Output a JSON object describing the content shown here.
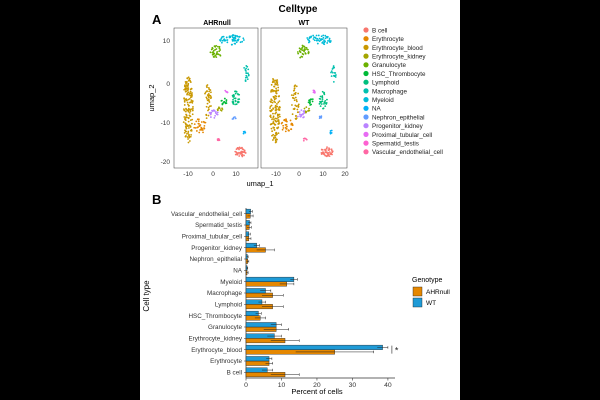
{
  "figure_title": "Celltype",
  "panel_a": {
    "label": "A",
    "facets": [
      "AHRnull",
      "WT"
    ],
    "xlabel": "umap_1",
    "ylabel": "umap_2",
    "xticks": [
      -10,
      0,
      10,
      20
    ],
    "yticks": [
      -20,
      -10,
      0,
      10
    ],
    "legend": [
      {
        "label": "B cell",
        "color": "#F8766D"
      },
      {
        "label": "Erythrocyte",
        "color": "#E58700"
      },
      {
        "label": "Erythrocyte_blood",
        "color": "#C99800"
      },
      {
        "label": "Erythrocyte_kidney",
        "color": "#A3A500"
      },
      {
        "label": "Granulocyte",
        "color": "#6BB100"
      },
      {
        "label": "HSC_Thrombocyte",
        "color": "#00BA38"
      },
      {
        "label": "Lymphoid",
        "color": "#00BF7D"
      },
      {
        "label": "Macrophage",
        "color": "#00C0AF"
      },
      {
        "label": "Myeloid",
        "color": "#00BCD8"
      },
      {
        "label": "NA",
        "color": "#00B0F6"
      },
      {
        "label": "Nephron_epithelial",
        "color": "#619CFF"
      },
      {
        "label": "Progenitor_kidney",
        "color": "#B983FF"
      },
      {
        "label": "Proximal_tubular_cell",
        "color": "#E76BF3"
      },
      {
        "label": "Spermatid_testis",
        "color": "#FD61D1"
      },
      {
        "label": "Vascular_endothelial_cell",
        "color": "#FF67A4"
      }
    ]
  },
  "chart_data": {
    "type": "bar",
    "panel_label": "B",
    "orientation": "horizontal",
    "categories": [
      "B cell",
      "Erythrocyte",
      "Erythrocyte_blood",
      "Erythrocyte_kidney",
      "Granulocyte",
      "HSC_Thrombocyte",
      "Lymphoid",
      "Macrophage",
      "Myeloid",
      "NA",
      "Nephron_epithelial",
      "Progenitor_kidney",
      "Proximal_tubular_cell",
      "Spermatid_testis",
      "Vascular_endothelial_cell"
    ],
    "series": [
      {
        "name": "AHRnull",
        "color": "#E58700",
        "values": [
          11,
          6.5,
          25,
          11,
          8.5,
          4,
          7.5,
          7.5,
          11.5,
          0.3,
          0.5,
          5.5,
          0.8,
          0.9,
          1.2
        ],
        "errors": [
          4,
          1,
          11,
          4,
          3.5,
          1.5,
          3,
          3,
          2,
          0.3,
          0.3,
          2.5,
          0.6,
          0.6,
          0.8
        ]
      },
      {
        "name": "WT",
        "color": "#1F9BD7",
        "values": [
          6,
          6.5,
          38.5,
          8,
          8.5,
          3.5,
          4.5,
          5.5,
          13.5,
          0.3,
          0.4,
          3,
          0.8,
          1,
          1.3
        ],
        "errors": [
          1.5,
          0.8,
          1.5,
          2,
          1.5,
          0.8,
          1,
          1.5,
          1,
          0.2,
          0.2,
          0.8,
          0.4,
          0.4,
          0.5
        ]
      }
    ],
    "xticks": [
      0,
      10,
      20,
      30,
      40
    ],
    "xlim": [
      0,
      42
    ],
    "xlabel": "Percent of cells",
    "ylabel": "Cell type",
    "legend_title": "Genotype",
    "annotation": {
      "text": "*",
      "category": "Erythrocyte_blood"
    }
  }
}
